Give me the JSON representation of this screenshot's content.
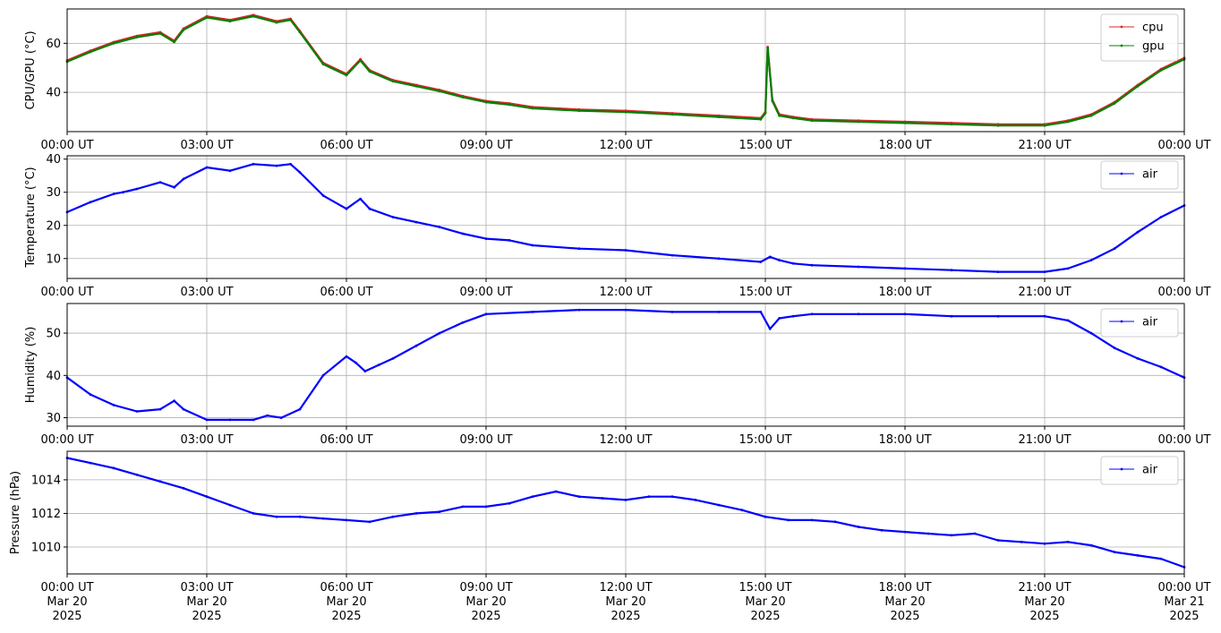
{
  "chart_data": [
    {
      "type": "line",
      "ylabel": "CPU/GPU (°C)",
      "ylim": [
        24,
        74
      ],
      "yticks": [
        40,
        60
      ],
      "xlim": [
        0,
        24
      ],
      "xtick_labels": [
        "00:00 UT",
        "03:00 UT",
        "06:00 UT",
        "09:00 UT",
        "12:00 UT",
        "15:00 UT",
        "18:00 UT",
        "21:00 UT",
        "00:00 UT"
      ],
      "grid": true,
      "legend_position": "top-right",
      "series": [
        {
          "name": "cpu",
          "color": "#d62728",
          "x": [
            0,
            0.5,
            1,
            1.5,
            2,
            2.3,
            2.5,
            3,
            3.5,
            4,
            4.5,
            4.8,
            5,
            5.5,
            6,
            6.3,
            6.5,
            7,
            7.5,
            8,
            8.5,
            9,
            9.5,
            10,
            11,
            12,
            13,
            14,
            14.9,
            15.0,
            15.05,
            15.15,
            15.3,
            15.6,
            16,
            17,
            18,
            19,
            20,
            21,
            21.5,
            22,
            22.5,
            23,
            23.5,
            24
          ],
          "y": [
            53,
            57,
            60.5,
            63,
            64.5,
            61,
            66,
            71,
            69.5,
            71.5,
            69,
            70,
            65,
            52,
            47.5,
            53.5,
            49,
            45,
            43,
            41,
            38.5,
            36.5,
            35.5,
            34,
            33,
            32.5,
            31.5,
            30.5,
            29.5,
            32,
            58.5,
            37,
            31,
            30,
            29,
            28.5,
            28,
            27.5,
            27,
            27,
            28.5,
            31,
            36,
            43,
            49.5,
            54
          ]
        },
        {
          "name": "gpu",
          "color": "#008000",
          "x": [
            0,
            0.5,
            1,
            1.5,
            2,
            2.3,
            2.5,
            3,
            3.5,
            4,
            4.5,
            4.8,
            5,
            5.5,
            6,
            6.3,
            6.5,
            7,
            7.5,
            8,
            8.5,
            9,
            9.5,
            10,
            11,
            12,
            13,
            14,
            14.9,
            15.0,
            15.05,
            15.15,
            15.3,
            15.6,
            16,
            17,
            18,
            19,
            20,
            21,
            21.5,
            22,
            22.5,
            23,
            23.5,
            24
          ],
          "y": [
            52.5,
            56.5,
            60,
            62.5,
            64,
            60.5,
            65.5,
            70.5,
            69,
            71,
            68.5,
            69.5,
            64.5,
            51.5,
            47,
            53,
            48.5,
            44.5,
            42.5,
            40.5,
            38,
            36,
            35,
            33.5,
            32.5,
            32,
            31,
            30,
            29,
            31.5,
            58,
            36.5,
            30.5,
            29.5,
            28.5,
            28,
            27.5,
            27,
            26.5,
            26.5,
            28,
            30.5,
            35.5,
            42.5,
            49,
            53.5
          ]
        }
      ]
    },
    {
      "type": "line",
      "ylabel": "Temperature (°C)",
      "ylim": [
        4,
        41
      ],
      "yticks": [
        10,
        20,
        30,
        40
      ],
      "xlim": [
        0,
        24
      ],
      "xtick_labels": [
        "00:00 UT",
        "03:00 UT",
        "06:00 UT",
        "09:00 UT",
        "12:00 UT",
        "15:00 UT",
        "18:00 UT",
        "21:00 UT",
        "00:00 UT"
      ],
      "grid": true,
      "legend_position": "top-right",
      "series": [
        {
          "name": "air",
          "color": "#0000ff",
          "x": [
            0,
            0.5,
            1,
            1.2,
            1.5,
            2,
            2.3,
            2.5,
            3,
            3.5,
            4,
            4.5,
            4.8,
            5,
            5.5,
            6,
            6.3,
            6.5,
            7,
            7.5,
            8,
            8.5,
            9,
            9.5,
            10,
            11,
            12,
            13,
            14,
            14.9,
            15.1,
            15.3,
            15.6,
            16,
            17,
            18,
            19,
            20,
            21,
            21.5,
            22,
            22.5,
            23,
            23.5,
            24
          ],
          "y": [
            24,
            27,
            29.5,
            30,
            31,
            33,
            31.5,
            34,
            37.5,
            36.5,
            38.5,
            38,
            38.5,
            36,
            29,
            25,
            28,
            25,
            22.5,
            21,
            19.5,
            17.5,
            16,
            15.5,
            14,
            13,
            12.5,
            11,
            10,
            9,
            10.5,
            9.5,
            8.5,
            8,
            7.5,
            7,
            6.5,
            6,
            6,
            7,
            9.5,
            13,
            18,
            22.5,
            26
          ]
        }
      ]
    },
    {
      "type": "line",
      "ylabel": "Humidity (%)",
      "ylim": [
        28,
        57
      ],
      "yticks": [
        30,
        40,
        50
      ],
      "xlim": [
        0,
        24
      ],
      "xtick_labels": [
        "00:00 UT",
        "03:00 UT",
        "06:00 UT",
        "09:00 UT",
        "12:00 UT",
        "15:00 UT",
        "18:00 UT",
        "21:00 UT",
        "00:00 UT"
      ],
      "grid": true,
      "legend_position": "top-right",
      "series": [
        {
          "name": "air",
          "color": "#0000ff",
          "x": [
            0,
            0.5,
            1,
            1.5,
            2,
            2.3,
            2.5,
            3,
            3.5,
            4,
            4.3,
            4.6,
            5,
            5.5,
            6,
            6.2,
            6.4,
            6.7,
            7,
            7.5,
            8,
            8.5,
            9,
            10,
            11,
            12,
            13,
            14,
            14.9,
            15.1,
            15.3,
            15.6,
            16,
            17,
            18,
            19,
            20,
            21,
            21.5,
            22,
            22.5,
            23,
            23.5,
            24
          ],
          "y": [
            39.5,
            35.5,
            33,
            31.5,
            32,
            34,
            32,
            29.5,
            29.5,
            29.5,
            30.5,
            30,
            32,
            40,
            44.5,
            43,
            41,
            42.5,
            44,
            47,
            50,
            52.5,
            54.5,
            55,
            55.5,
            55.5,
            55,
            55,
            55,
            51,
            53.5,
            54,
            54.5,
            54.5,
            54.5,
            54,
            54,
            54,
            53,
            50,
            46.5,
            44,
            42,
            39.5
          ]
        }
      ]
    },
    {
      "type": "line",
      "ylabel": "Pressure (hPa)",
      "ylim": [
        1008.4,
        1015.7
      ],
      "yticks": [
        1010,
        1012,
        1014
      ],
      "xlim": [
        0,
        24
      ],
      "xtick_labels": [
        "00:00 UT\nMar 20\n2025",
        "03:00 UT\nMar 20\n2025",
        "06:00 UT\nMar 20\n2025",
        "09:00 UT\nMar 20\n2025",
        "12:00 UT\nMar 20\n2025",
        "15:00 UT\nMar 20\n2025",
        "18:00 UT\nMar 20\n2025",
        "21:00 UT\nMar 20\n2025",
        "00:00 UT\nMar 21\n2025"
      ],
      "grid": true,
      "legend_position": "top-right",
      "series": [
        {
          "name": "air",
          "color": "#0000ff",
          "x": [
            0,
            0.5,
            1,
            1.5,
            2,
            2.5,
            3,
            3.5,
            4,
            4.5,
            5,
            5.5,
            6,
            6.5,
            7,
            7.5,
            8,
            8.5,
            9,
            9.5,
            10,
            10.5,
            11,
            11.5,
            12,
            12.5,
            13,
            13.5,
            14,
            14.5,
            15,
            15.5,
            16,
            16.5,
            17,
            17.5,
            18,
            18.5,
            19,
            19.5,
            20,
            20.5,
            21,
            21.5,
            22,
            22.5,
            23,
            23.5,
            24
          ],
          "y": [
            1015.3,
            1015,
            1014.7,
            1014.3,
            1013.9,
            1013.5,
            1013.0,
            1012.5,
            1012.0,
            1011.8,
            1011.8,
            1011.7,
            1011.6,
            1011.5,
            1011.8,
            1012.0,
            1012.1,
            1012.4,
            1012.4,
            1012.6,
            1013.0,
            1013.3,
            1013.0,
            1012.9,
            1012.8,
            1013.0,
            1013.0,
            1012.8,
            1012.5,
            1012.2,
            1011.8,
            1011.6,
            1011.6,
            1011.5,
            1011.2,
            1011.0,
            1010.9,
            1010.8,
            1010.7,
            1010.8,
            1010.4,
            1010.3,
            1010.2,
            1010.3,
            1010.1,
            1009.7,
            1009.5,
            1009.3,
            1008.8
          ]
        }
      ]
    }
  ]
}
